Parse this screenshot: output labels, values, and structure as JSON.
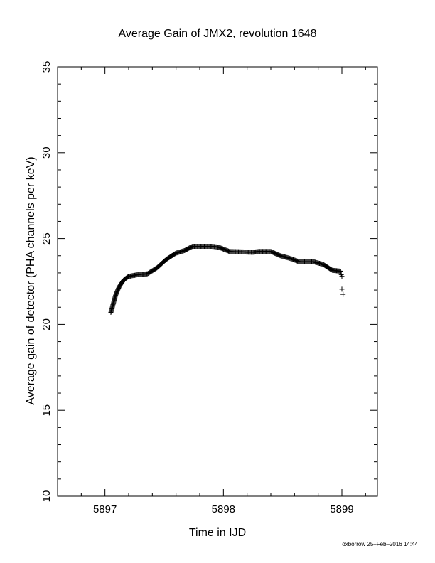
{
  "chart_data": {
    "type": "scatter",
    "title": "Average Gain of JMX2, revolution 1648",
    "xlabel": "Time in IJD",
    "ylabel": "Average gain of detector (PHA channels per keV)",
    "xlim": [
      5896.6,
      5899.3
    ],
    "ylim": [
      10,
      35
    ],
    "xticks": [
      5897,
      5898,
      5899
    ],
    "yticks": [
      10,
      15,
      20,
      25,
      30,
      35
    ],
    "x_minor_step": 0.2,
    "y_minor_step": 1,
    "marker": "plus",
    "grid": false,
    "footer": "oxborrow 25–Feb–2016 14:44",
    "curve_knots": [
      [
        5897.05,
        20.7
      ],
      [
        5897.07,
        21.2
      ],
      [
        5897.09,
        21.7
      ],
      [
        5897.12,
        22.2
      ],
      [
        5897.16,
        22.6
      ],
      [
        5897.2,
        22.8
      ],
      [
        5897.28,
        22.9
      ],
      [
        5897.36,
        22.95
      ],
      [
        5897.44,
        23.3
      ],
      [
        5897.52,
        23.8
      ],
      [
        5897.6,
        24.15
      ],
      [
        5897.67,
        24.3
      ],
      [
        5897.74,
        24.55
      ],
      [
        5897.9,
        24.55
      ],
      [
        5897.96,
        24.5
      ],
      [
        5898.05,
        24.25
      ],
      [
        5898.25,
        24.2
      ],
      [
        5898.3,
        24.25
      ],
      [
        5898.4,
        24.25
      ],
      [
        5898.48,
        24.0
      ],
      [
        5898.56,
        23.85
      ],
      [
        5898.64,
        23.65
      ],
      [
        5898.76,
        23.65
      ],
      [
        5898.84,
        23.5
      ],
      [
        5898.92,
        23.15
      ],
      [
        5898.99,
        23.1
      ]
    ],
    "outliers": [
      [
        5898.995,
        22.9
      ],
      [
        5899.0,
        22.8
      ],
      [
        5899.0,
        22.05
      ],
      [
        5899.01,
        21.75
      ]
    ]
  }
}
